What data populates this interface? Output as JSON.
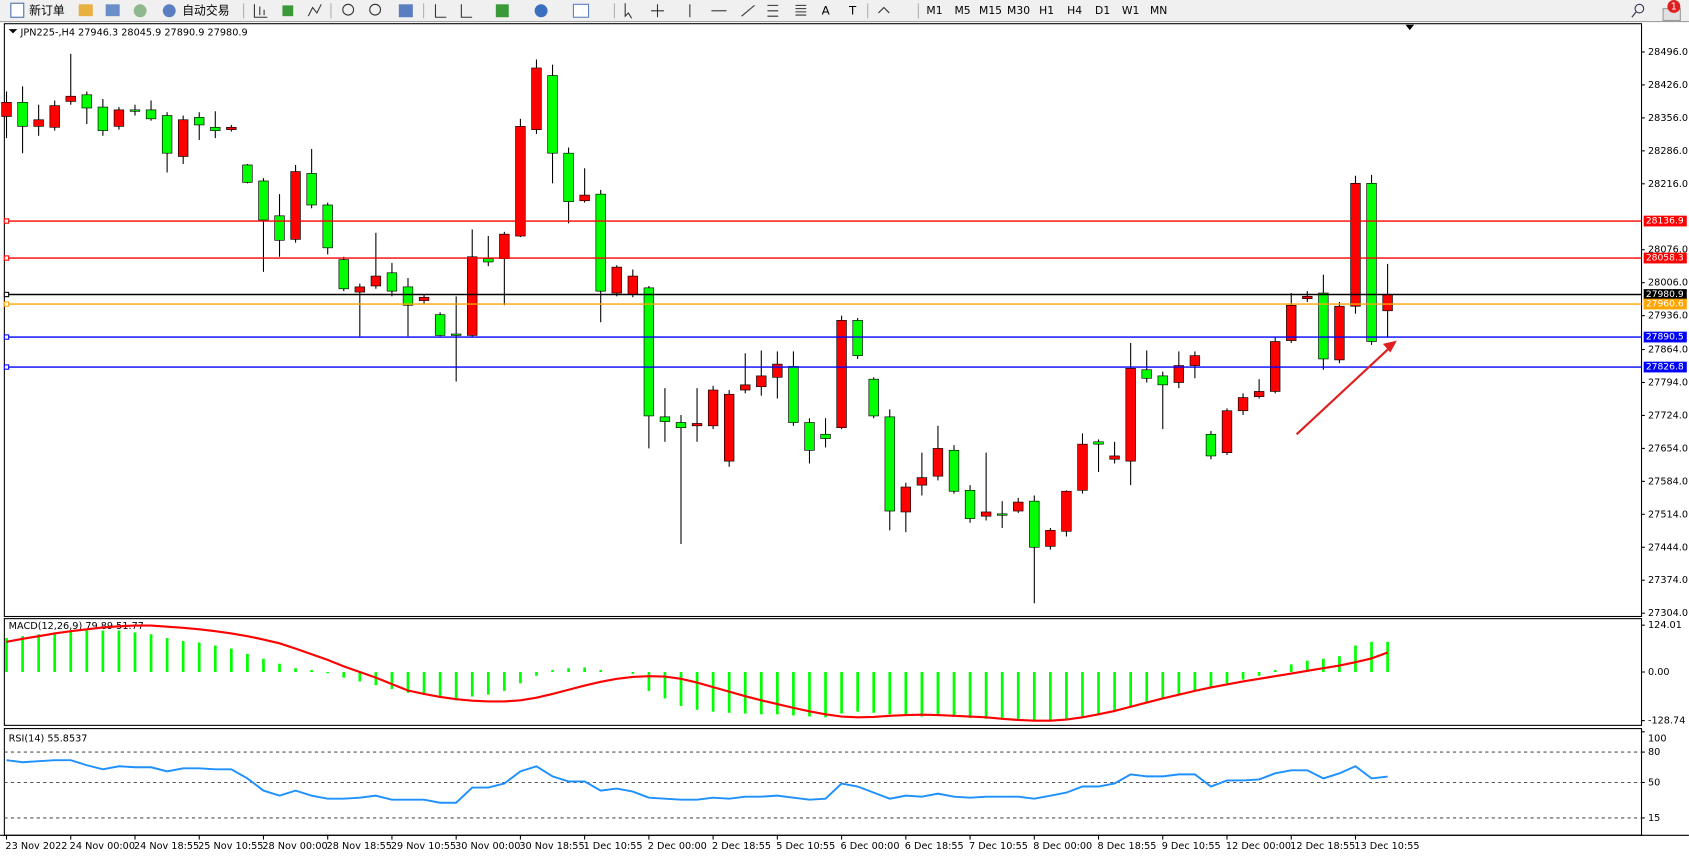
{
  "toolbar": {
    "new_order": "新订单",
    "auto_trading": "自动交易",
    "text_tools": [
      "A",
      "T"
    ],
    "timeframes": [
      "M1",
      "M5",
      "M15",
      "M30",
      "H1",
      "H4",
      "D1",
      "W1",
      "MN"
    ],
    "notifications": 1
  },
  "chart": {
    "type": "candlestick",
    "symbol": "JPN225-,H4",
    "up_color": "#ff0000",
    "down_color": "#00ff00",
    "open": [
      28359,
      28389,
      28338,
      28336,
      28391,
      28405,
      28379,
      28338,
      28373,
      28373,
      28361,
      28274,
      28357,
      28336,
      28331,
      28256,
      28222,
      28148,
      28098,
      28238,
      28171,
      28055,
      27986,
      27999,
      28027,
      27997,
      27968,
      27938,
      27897,
      27894,
      28057,
      28057,
      28105,
      28331,
      28446,
      28281,
      28180,
      28194,
      27984,
      27981,
      27995,
      27721,
      27709,
      27702,
      27702,
      27627,
      27778,
      27785,
      27805,
      27828,
      27709,
      27684,
      27698,
      27926,
      27801,
      27721,
      27519,
      27576,
      27595,
      27650,
      27565,
      27510,
      27515,
      27521,
      27542,
      27446,
      27478,
      27565,
      27668,
      27631,
      27627,
      27821,
      27808,
      27794,
      27830,
      27684,
      27645,
      27734,
      27764,
      27775,
      27883,
      27972,
      27984,
      27842,
      27956,
      28217,
      27946.3
    ],
    "high": [
      28412,
      28423,
      28384,
      28393,
      28492,
      28412,
      28396,
      28379,
      28384,
      28393,
      28368,
      28361,
      28368,
      28370,
      28341,
      28258,
      28228,
      28194,
      28256,
      28290,
      28176,
      28061,
      28004,
      28112,
      28048,
      28016,
      27981,
      27943,
      27977,
      28119,
      28105,
      28114,
      28354,
      28480,
      28469,
      28293,
      28249,
      28203,
      28043,
      28034,
      27999,
      27782,
      27725,
      27782,
      27787,
      27778,
      27856,
      27862,
      27860,
      27860,
      27718,
      27718,
      27936,
      27931,
      27805,
      27737,
      27581,
      27645,
      27702,
      27661,
      27576,
      27645,
      27542,
      27549,
      27554,
      27485,
      27565,
      27686,
      27673,
      27668,
      27878,
      27862,
      27817,
      27860,
      27860,
      27691,
      27739,
      27771,
      27801,
      27890,
      27984,
      27988,
      28023,
      27965,
      28233,
      28235,
      28045.9
    ],
    "low": [
      28313,
      28281,
      28318,
      28329,
      28384,
      28343,
      28318,
      28331,
      28361,
      28350,
      28240,
      28258,
      28309,
      28313,
      28327,
      28217,
      28029,
      28061,
      28091,
      28164,
      28066,
      27988,
      27892,
      27993,
      27977,
      27892,
      27961,
      27892,
      27796,
      27890,
      28041,
      27958,
      28103,
      28322,
      28217,
      28132,
      28176,
      27922,
      27977,
      27975,
      27654,
      27668,
      27451,
      27668,
      27695,
      27615,
      27771,
      27766,
      27760,
      27702,
      27622,
      27656,
      27695,
      27844,
      27718,
      27480,
      27476,
      27554,
      27586,
      27558,
      27496,
      27501,
      27485,
      27517,
      27325,
      27439,
      27467,
      27558,
      27604,
      27622,
      27576,
      27794,
      27695,
      27782,
      27803,
      27631,
      27640,
      27725,
      27760,
      27771,
      27878,
      27965,
      27821,
      27835,
      27940,
      27874,
      27890.9
    ],
    "close": [
      28389,
      28338,
      28352,
      28382,
      28402,
      28377,
      28329,
      28373,
      28370,
      28354,
      28281,
      28352,
      28341,
      28329,
      28336,
      28219,
      28139,
      28096,
      28242,
      28171,
      28080,
      27993,
      27997,
      28020,
      27988,
      27958,
      27975,
      27894,
      27894,
      28061,
      28050,
      28109,
      28338,
      28462,
      28281,
      28178,
      28192,
      27988,
      28039,
      28020,
      27723,
      27711,
      27698,
      27707,
      27778,
      27769,
      27789,
      27808,
      27833,
      27709,
      27650,
      27675,
      27926,
      27851,
      27723,
      27521,
      27572,
      27592,
      27654,
      27563,
      27505,
      27519,
      27512,
      27540,
      27444,
      27480,
      27563,
      27663,
      27663,
      27638,
      27824,
      27803,
      27789,
      27830,
      27851,
      27638,
      27734,
      27762,
      27775,
      27881,
      27958,
      27977,
      27844,
      27956,
      28217,
      27881,
      27980.9
    ],
    "time_labels": [
      "23 Nov 2022",
      "24 Nov 00:00",
      "24 Nov 18:55",
      "25 Nov 10:55",
      "28 Nov 00:00",
      "28 Nov 18:55",
      "29 Nov 10:55",
      "30 Nov 00:00",
      "30 Nov 18:55",
      "1 Dec 10:55",
      "2 Dec 00:00",
      "2 Dec 18:55",
      "5 Dec 10:55",
      "6 Dec 00:00",
      "6 Dec 18:55",
      "7 Dec 10:55",
      "8 Dec 00:00",
      "8 Dec 18:55",
      "9 Dec 10:55",
      "12 Dec 00:00",
      "12 Dec 18:55",
      "13 Dec 10:55"
    ],
    "ylim": [
      27297,
      28556
    ],
    "yticks": [
      {
        "value": 28496,
        "label": "28496.0"
      },
      {
        "value": 28426,
        "label": "28426.0"
      },
      {
        "value": 28356,
        "label": "28356.0"
      },
      {
        "value": 28286,
        "label": "28286.0"
      },
      {
        "value": 28216,
        "label": "28216.0"
      },
      {
        "value": 28076,
        "label": "28076.0"
      },
      {
        "value": 28006,
        "label": "28006.0"
      },
      {
        "value": 27936,
        "label": "27936.0"
      },
      {
        "value": 27864,
        "label": "27864.0"
      },
      {
        "value": 27794,
        "label": "27794.0"
      },
      {
        "value": 27724,
        "label": "27724.0"
      },
      {
        "value": 27654,
        "label": "27654.0"
      },
      {
        "value": 27584,
        "label": "27584.0"
      },
      {
        "value": 27514,
        "label": "27514.0"
      },
      {
        "value": 27444,
        "label": "27444.0"
      },
      {
        "value": 27374,
        "label": "27374.0"
      },
      {
        "value": 27304,
        "label": "27304.0"
      }
    ],
    "levels": [
      {
        "value": 28136.9,
        "color": "#ff0000"
      },
      {
        "value": 28058.3,
        "color": "#ff0000"
      },
      {
        "value": 27980.9,
        "color": "#000000"
      },
      {
        "value": 27960.6,
        "color": "#ffa500"
      },
      {
        "value": 27890.5,
        "color": "#0000ff"
      },
      {
        "value": 27826.8,
        "color": "#0000ff"
      }
    ]
  },
  "macd": {
    "name": "MACD(12,26,9)",
    "histogram_color": "#00ff00",
    "signal_color": "#ff0000",
    "histogram": [
      90,
      95,
      100,
      105,
      108,
      110,
      110,
      110,
      105,
      100,
      90,
      82,
      78,
      70,
      62,
      48,
      35,
      22,
      10,
      5,
      -3,
      -15,
      -25,
      -35,
      -45,
      -55,
      -60,
      -68,
      -75,
      -65,
      -60,
      -50,
      -30,
      -10,
      5,
      10,
      12,
      5,
      0,
      -5,
      -50,
      -70,
      -90,
      -100,
      -105,
      -108,
      -110,
      -112,
      -112,
      -115,
      -118,
      -120,
      -110,
      -105,
      -108,
      -112,
      -115,
      -118,
      -115,
      -118,
      -122,
      -124,
      -126,
      -126,
      -128,
      -128,
      -125,
      -118,
      -110,
      -102,
      -90,
      -80,
      -70,
      -60,
      -50,
      -40,
      -30,
      -20,
      -10,
      5,
      20,
      30,
      35,
      42,
      70,
      80,
      79.89
    ],
    "signal": [
      80,
      88,
      95,
      102,
      108,
      113,
      118,
      121,
      123,
      123,
      120,
      117,
      113,
      108,
      102,
      95,
      86,
      76,
      62,
      47,
      32,
      15,
      0,
      -15,
      -32,
      -49,
      -58,
      -66,
      -72,
      -76,
      -78,
      -78,
      -75,
      -68,
      -58,
      -47,
      -36,
      -26,
      -18,
      -13,
      -11,
      -12,
      -18,
      -28,
      -40,
      -52,
      -64,
      -75,
      -85,
      -95,
      -104,
      -112,
      -118,
      -120,
      -119,
      -116,
      -114,
      -113,
      -114,
      -116,
      -118,
      -120,
      -124,
      -127,
      -129,
      -129,
      -126,
      -120,
      -112,
      -103,
      -92,
      -81,
      -70,
      -60,
      -50,
      -41,
      -33,
      -25,
      -18,
      -11,
      -4,
      3,
      10,
      17,
      26,
      36,
      51.77
    ],
    "ylim": [
      -141.3,
      141.3
    ],
    "yticks": [
      124.01,
      {
        "value": 0,
        "label": "0.00"
      },
      -128.74
    ]
  },
  "rsi": {
    "name": "RSI(14)",
    "color": "#1e90ff",
    "values": [
      72,
      70,
      71,
      72,
      72,
      67,
      63,
      66,
      65,
      65,
      61,
      64,
      64,
      63,
      63,
      54,
      42,
      37,
      42,
      37,
      34,
      34,
      35,
      37,
      33,
      33,
      33,
      30,
      30,
      45,
      45,
      49,
      61,
      66,
      56,
      51,
      51,
      42,
      44,
      41,
      35,
      34,
      33,
      33,
      35,
      34,
      36,
      36,
      37,
      35,
      33,
      34,
      49,
      46,
      40,
      34,
      37,
      36,
      39,
      36,
      35,
      36,
      36,
      36,
      34,
      37,
      40,
      46,
      46,
      49,
      58,
      56,
      56,
      58,
      58,
      46,
      52,
      52,
      53,
      59,
      62,
      62,
      54,
      59,
      66,
      54,
      55.8537
    ],
    "ylim": [
      0,
      100
    ],
    "yticks": [
      100,
      80,
      50,
      15
    ]
  }
}
